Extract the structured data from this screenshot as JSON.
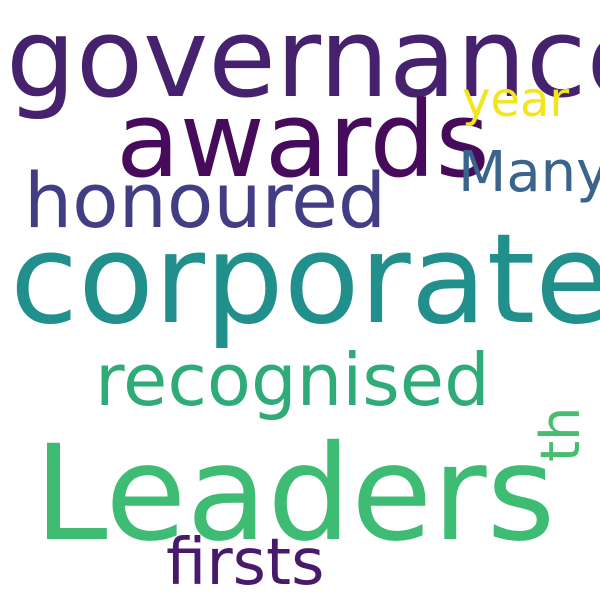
{
  "word_cloud": {
    "words": [
      {
        "id": "governance",
        "text": "governance",
        "color": "#46216d"
      },
      {
        "id": "awards",
        "text": "awards",
        "color": "#460b5a"
      },
      {
        "id": "year",
        "text": "year",
        "color": "#f2e51d"
      },
      {
        "id": "many",
        "text": "Many",
        "color": "#3b648c"
      },
      {
        "id": "honoured",
        "text": "honoured",
        "color": "#433d84"
      },
      {
        "id": "corporate",
        "text": "corporate",
        "color": "#21908d"
      },
      {
        "id": "recognised",
        "text": "recognised",
        "color": "#2fab78"
      },
      {
        "id": "th",
        "text": "th",
        "color": "#48bd6f"
      },
      {
        "id": "leaders",
        "text": "Leaders",
        "color": "#3fbc73"
      },
      {
        "id": "firsts",
        "text": "firsts",
        "color": "#481a6c"
      }
    ]
  }
}
